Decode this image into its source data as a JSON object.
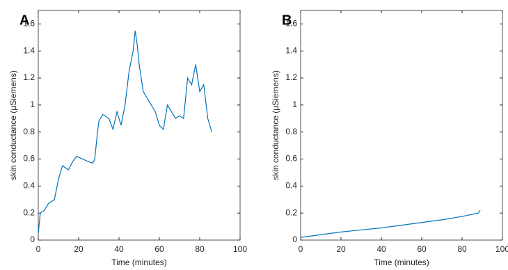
{
  "chart_data": [
    {
      "type": "line",
      "label": "A",
      "xlabel": "Time (minutes)",
      "ylabel": "skin conductance (µSiemens)",
      "color": "#0072bd",
      "x": [
        0,
        1,
        3,
        5,
        8,
        10,
        12,
        15,
        17,
        19,
        22,
        25,
        27,
        28,
        29,
        30,
        32,
        35,
        37,
        39,
        41,
        43,
        45,
        47,
        48,
        49,
        50,
        52,
        54,
        56,
        58,
        60,
        62,
        64,
        66,
        68,
        70,
        72,
        74,
        76,
        78,
        80,
        82,
        84,
        86
      ],
      "values": [
        0.05,
        0.2,
        0.22,
        0.27,
        0.3,
        0.45,
        0.55,
        0.52,
        0.58,
        0.62,
        0.6,
        0.58,
        0.57,
        0.6,
        0.75,
        0.88,
        0.93,
        0.9,
        0.82,
        0.95,
        0.85,
        1.0,
        1.25,
        1.4,
        1.55,
        1.45,
        1.3,
        1.1,
        1.05,
        1.0,
        0.95,
        0.85,
        0.82,
        1.0,
        0.95,
        0.9,
        0.92,
        0.9,
        1.2,
        1.15,
        1.3,
        1.1,
        1.15,
        0.9,
        0.8
      ],
      "xlim": [
        0,
        100
      ],
      "ylim": [
        0,
        1.7
      ],
      "xticks": [
        0,
        20,
        40,
        60,
        80,
        100
      ],
      "yticks": [
        0,
        0.2,
        0.4,
        0.6,
        0.8,
        1,
        1.2,
        1.4,
        1.6
      ]
    },
    {
      "type": "line",
      "label": "B",
      "xlabel": "Time (minutes)",
      "ylabel": "skin conductance (µSiemens)",
      "color": "#0072bd",
      "x": [
        0,
        10,
        20,
        30,
        40,
        50,
        60,
        70,
        80,
        88,
        89
      ],
      "values": [
        0.02,
        0.04,
        0.06,
        0.075,
        0.09,
        0.11,
        0.13,
        0.15,
        0.175,
        0.2,
        0.22
      ],
      "xlim": [
        0,
        100
      ],
      "ylim": [
        0,
        1.7
      ],
      "xticks": [
        0,
        20,
        40,
        60,
        80,
        100
      ],
      "yticks": [
        0,
        0.2,
        0.4,
        0.6,
        0.8,
        1,
        1.2,
        1.4,
        1.6
      ]
    }
  ]
}
